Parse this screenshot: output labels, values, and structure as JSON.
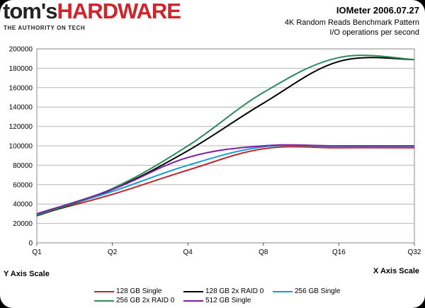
{
  "header": {
    "logo_toms": "tom's",
    "logo_hardware": "HARDWARE",
    "tagline": "THE AUTHORITY ON TECH",
    "title": "IOMeter 2006.07.27",
    "subtitle": "4K Random Reads Benchmark Pattern",
    "unit": "I/O operations per second"
  },
  "axis_notes": {
    "y": "Y Axis Scale",
    "x": "X Axis Scale"
  },
  "chart_data": {
    "type": "line",
    "title": "IOMeter 2006.07.27",
    "subtitle": "4K Random Reads Benchmark Pattern",
    "ylabel": "I/O operations per second",
    "xlabel": "",
    "categories": [
      "Q1",
      "Q2",
      "Q4",
      "Q8",
      "Q16",
      "Q32"
    ],
    "ylim": [
      0,
      200000
    ],
    "yticks": [
      0,
      20000,
      40000,
      60000,
      80000,
      100000,
      120000,
      140000,
      160000,
      180000,
      200000
    ],
    "grid": "horizontal",
    "legend_position": "bottom",
    "series": [
      {
        "name": "128 GB Single",
        "color": "#c0272d",
        "values": [
          29000,
          50000,
          75000,
          97000,
          98000,
          98000
        ]
      },
      {
        "name": "128 GB 2x RAID 0",
        "color": "#000000",
        "values": [
          28000,
          55000,
          95000,
          144000,
          187000,
          189000
        ]
      },
      {
        "name": "256 GB Single",
        "color": "#1b9bd6",
        "values": [
          29000,
          53000,
          80000,
          99000,
          99500,
          99500
        ]
      },
      {
        "name": "256 GB 2x RAID 0",
        "color": "#2e8b57",
        "values": [
          28500,
          56000,
          100000,
          155000,
          191000,
          189000
        ]
      },
      {
        "name": "512 GB Single",
        "color": "#7b1fa2",
        "values": [
          30000,
          55000,
          88000,
          100000,
          100000,
          100000
        ]
      }
    ]
  }
}
